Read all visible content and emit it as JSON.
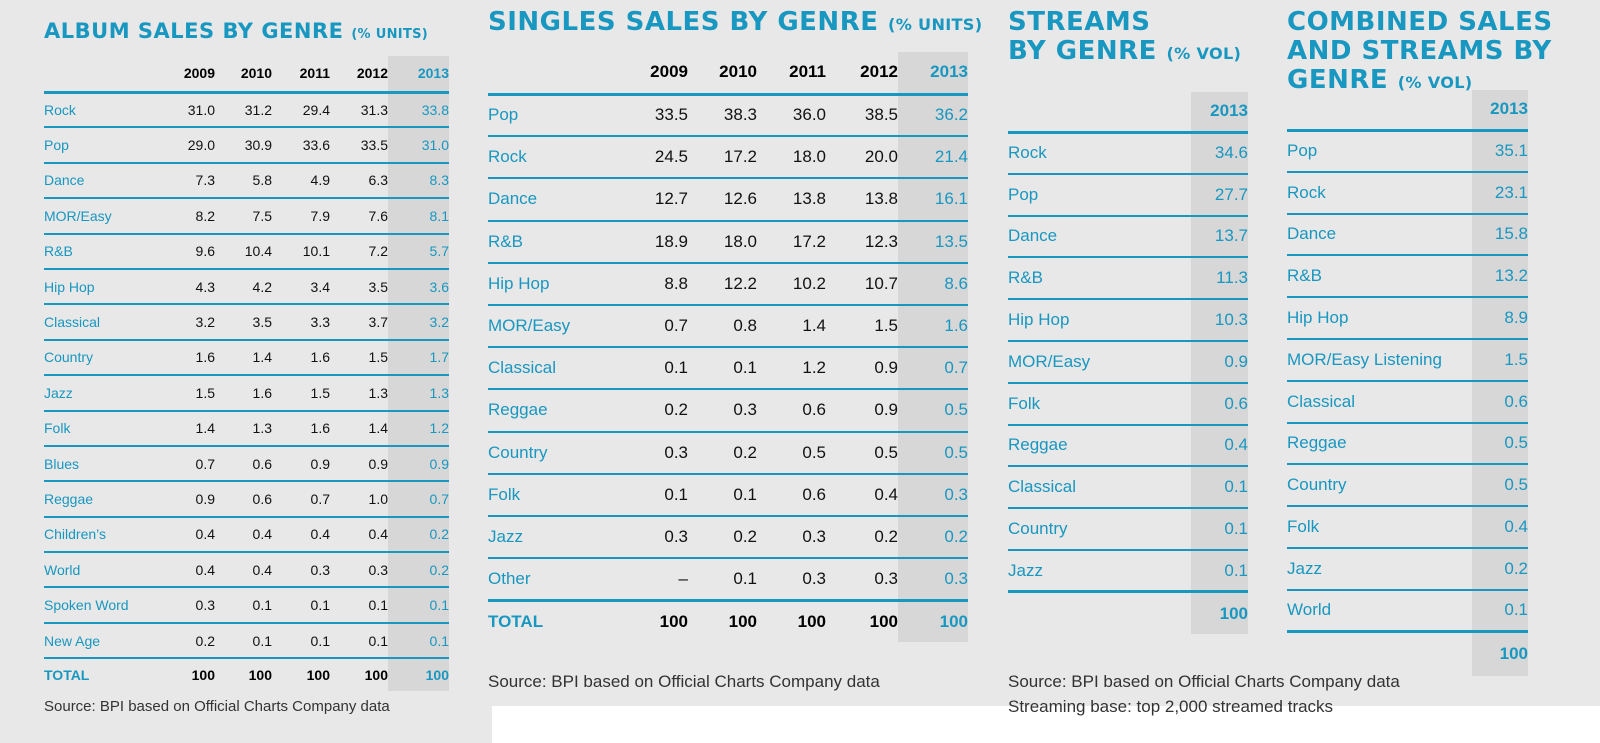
{
  "colors": {
    "accent": "#1897c0",
    "panel": "#e8e8e8",
    "highlight_col": "#d7d7d7"
  },
  "chart_data": [
    {
      "type": "table",
      "title": "ALBUM SALES BY GENRE",
      "unit": "(% UNITS)",
      "columns": [
        "2009",
        "2010",
        "2011",
        "2012",
        "2013"
      ],
      "rows": [
        {
          "genre": "Rock",
          "values": [
            "31.0",
            "31.2",
            "29.4",
            "31.3",
            "33.8"
          ]
        },
        {
          "genre": "Pop",
          "values": [
            "29.0",
            "30.9",
            "33.6",
            "33.5",
            "31.0"
          ]
        },
        {
          "genre": "Dance",
          "values": [
            "7.3",
            "5.8",
            "4.9",
            "6.3",
            "8.3"
          ]
        },
        {
          "genre": "MOR/Easy",
          "values": [
            "8.2",
            "7.5",
            "7.9",
            "7.6",
            "8.1"
          ]
        },
        {
          "genre": "R&B",
          "values": [
            "9.6",
            "10.4",
            "10.1",
            "7.2",
            "5.7"
          ]
        },
        {
          "genre": "Hip Hop",
          "values": [
            "4.3",
            "4.2",
            "3.4",
            "3.5",
            "3.6"
          ]
        },
        {
          "genre": "Classical",
          "values": [
            "3.2",
            "3.5",
            "3.3",
            "3.7",
            "3.2"
          ]
        },
        {
          "genre": "Country",
          "values": [
            "1.6",
            "1.4",
            "1.6",
            "1.5",
            "1.7"
          ]
        },
        {
          "genre": "Jazz",
          "values": [
            "1.5",
            "1.6",
            "1.5",
            "1.3",
            "1.3"
          ]
        },
        {
          "genre": "Folk",
          "values": [
            "1.4",
            "1.3",
            "1.6",
            "1.4",
            "1.2"
          ]
        },
        {
          "genre": "Blues",
          "values": [
            "0.7",
            "0.6",
            "0.9",
            "0.9",
            "0.9"
          ]
        },
        {
          "genre": "Reggae",
          "values": [
            "0.9",
            "0.6",
            "0.7",
            "1.0",
            "0.7"
          ]
        },
        {
          "genre": "Children’s",
          "values": [
            "0.4",
            "0.4",
            "0.4",
            "0.4",
            "0.2"
          ]
        },
        {
          "genre": "World",
          "values": [
            "0.4",
            "0.4",
            "0.3",
            "0.3",
            "0.2"
          ]
        },
        {
          "genre": "Spoken Word",
          "values": [
            "0.3",
            "0.1",
            "0.1",
            "0.1",
            "0.1"
          ]
        },
        {
          "genre": "New Age",
          "values": [
            "0.2",
            "0.1",
            "0.1",
            "0.1",
            "0.1"
          ]
        }
      ],
      "total": {
        "label": "TOTAL",
        "values": [
          "100",
          "100",
          "100",
          "100",
          "100"
        ]
      },
      "source": "Source: BPI based on Official Charts Company data"
    },
    {
      "type": "table",
      "title": "SINGLES SALES BY GENRE",
      "unit": "(% UNITS)",
      "columns": [
        "2009",
        "2010",
        "2011",
        "2012",
        "2013"
      ],
      "rows": [
        {
          "genre": "Pop",
          "values": [
            "33.5",
            "38.3",
            "36.0",
            "38.5",
            "36.2"
          ]
        },
        {
          "genre": "Rock",
          "values": [
            "24.5",
            "17.2",
            "18.0",
            "20.0",
            "21.4"
          ]
        },
        {
          "genre": "Dance",
          "values": [
            "12.7",
            "12.6",
            "13.8",
            "13.8",
            "16.1"
          ]
        },
        {
          "genre": "R&B",
          "values": [
            "18.9",
            "18.0",
            "17.2",
            "12.3",
            "13.5"
          ]
        },
        {
          "genre": "Hip Hop",
          "values": [
            "8.8",
            "12.2",
            "10.2",
            "10.7",
            "8.6"
          ]
        },
        {
          "genre": "MOR/Easy",
          "values": [
            "0.7",
            "0.8",
            "1.4",
            "1.5",
            "1.6"
          ]
        },
        {
          "genre": "Classical",
          "values": [
            "0.1",
            "0.1",
            "1.2",
            "0.9",
            "0.7"
          ]
        },
        {
          "genre": "Reggae",
          "values": [
            "0.2",
            "0.3",
            "0.6",
            "0.9",
            "0.5"
          ]
        },
        {
          "genre": "Country",
          "values": [
            "0.3",
            "0.2",
            "0.5",
            "0.5",
            "0.5"
          ]
        },
        {
          "genre": "Folk",
          "values": [
            "0.1",
            "0.1",
            "0.6",
            "0.4",
            "0.3"
          ]
        },
        {
          "genre": "Jazz",
          "values": [
            "0.3",
            "0.2",
            "0.3",
            "0.2",
            "0.2"
          ]
        },
        {
          "genre": "Other",
          "values": [
            "–",
            "0.1",
            "0.3",
            "0.3",
            "0.3"
          ]
        }
      ],
      "total": {
        "label": "TOTAL",
        "values": [
          "100",
          "100",
          "100",
          "100",
          "100"
        ]
      },
      "source": "Source: BPI based on Official Charts Company data"
    },
    {
      "type": "table",
      "title_lines": [
        "STREAMS",
        "BY GENRE"
      ],
      "unit": "(% VOL)",
      "columns": [
        "2013"
      ],
      "rows": [
        {
          "genre": "Rock",
          "values": [
            "34.6"
          ]
        },
        {
          "genre": "Pop",
          "values": [
            "27.7"
          ]
        },
        {
          "genre": "Dance",
          "values": [
            "13.7"
          ]
        },
        {
          "genre": "R&B",
          "values": [
            "11.3"
          ]
        },
        {
          "genre": "Hip Hop",
          "values": [
            "10.3"
          ]
        },
        {
          "genre": "MOR/Easy",
          "values": [
            "0.9"
          ]
        },
        {
          "genre": "Folk",
          "values": [
            "0.6"
          ]
        },
        {
          "genre": "Reggae",
          "values": [
            "0.4"
          ]
        },
        {
          "genre": "Classical",
          "values": [
            "0.1"
          ]
        },
        {
          "genre": "Country",
          "values": [
            "0.1"
          ]
        },
        {
          "genre": "Jazz",
          "values": [
            "0.1"
          ]
        }
      ],
      "total": {
        "label": "",
        "values": [
          "100"
        ]
      },
      "source": "Source: BPI based on Official Charts Company data",
      "note": "Streaming base: top 2,000 streamed tracks"
    },
    {
      "type": "table",
      "title_lines": [
        "COMBINED SALES",
        "AND STREAMS BY",
        "GENRE"
      ],
      "unit": "(% VOL)",
      "columns": [
        "2013"
      ],
      "rows": [
        {
          "genre": "Pop",
          "values": [
            "35.1"
          ]
        },
        {
          "genre": "Rock",
          "values": [
            "23.1"
          ]
        },
        {
          "genre": "Dance",
          "values": [
            "15.8"
          ]
        },
        {
          "genre": "R&B",
          "values": [
            "13.2"
          ]
        },
        {
          "genre": "Hip Hop",
          "values": [
            "8.9"
          ]
        },
        {
          "genre": "MOR/Easy Listening",
          "values": [
            "1.5"
          ]
        },
        {
          "genre": "Classical",
          "values": [
            "0.6"
          ]
        },
        {
          "genre": "Reggae",
          "values": [
            "0.5"
          ]
        },
        {
          "genre": "Country",
          "values": [
            "0.5"
          ]
        },
        {
          "genre": "Folk",
          "values": [
            "0.4"
          ]
        },
        {
          "genre": "Jazz",
          "values": [
            "0.2"
          ]
        },
        {
          "genre": "World",
          "values": [
            "0.1"
          ]
        }
      ],
      "total": {
        "label": "",
        "values": [
          "100"
        ]
      }
    }
  ]
}
